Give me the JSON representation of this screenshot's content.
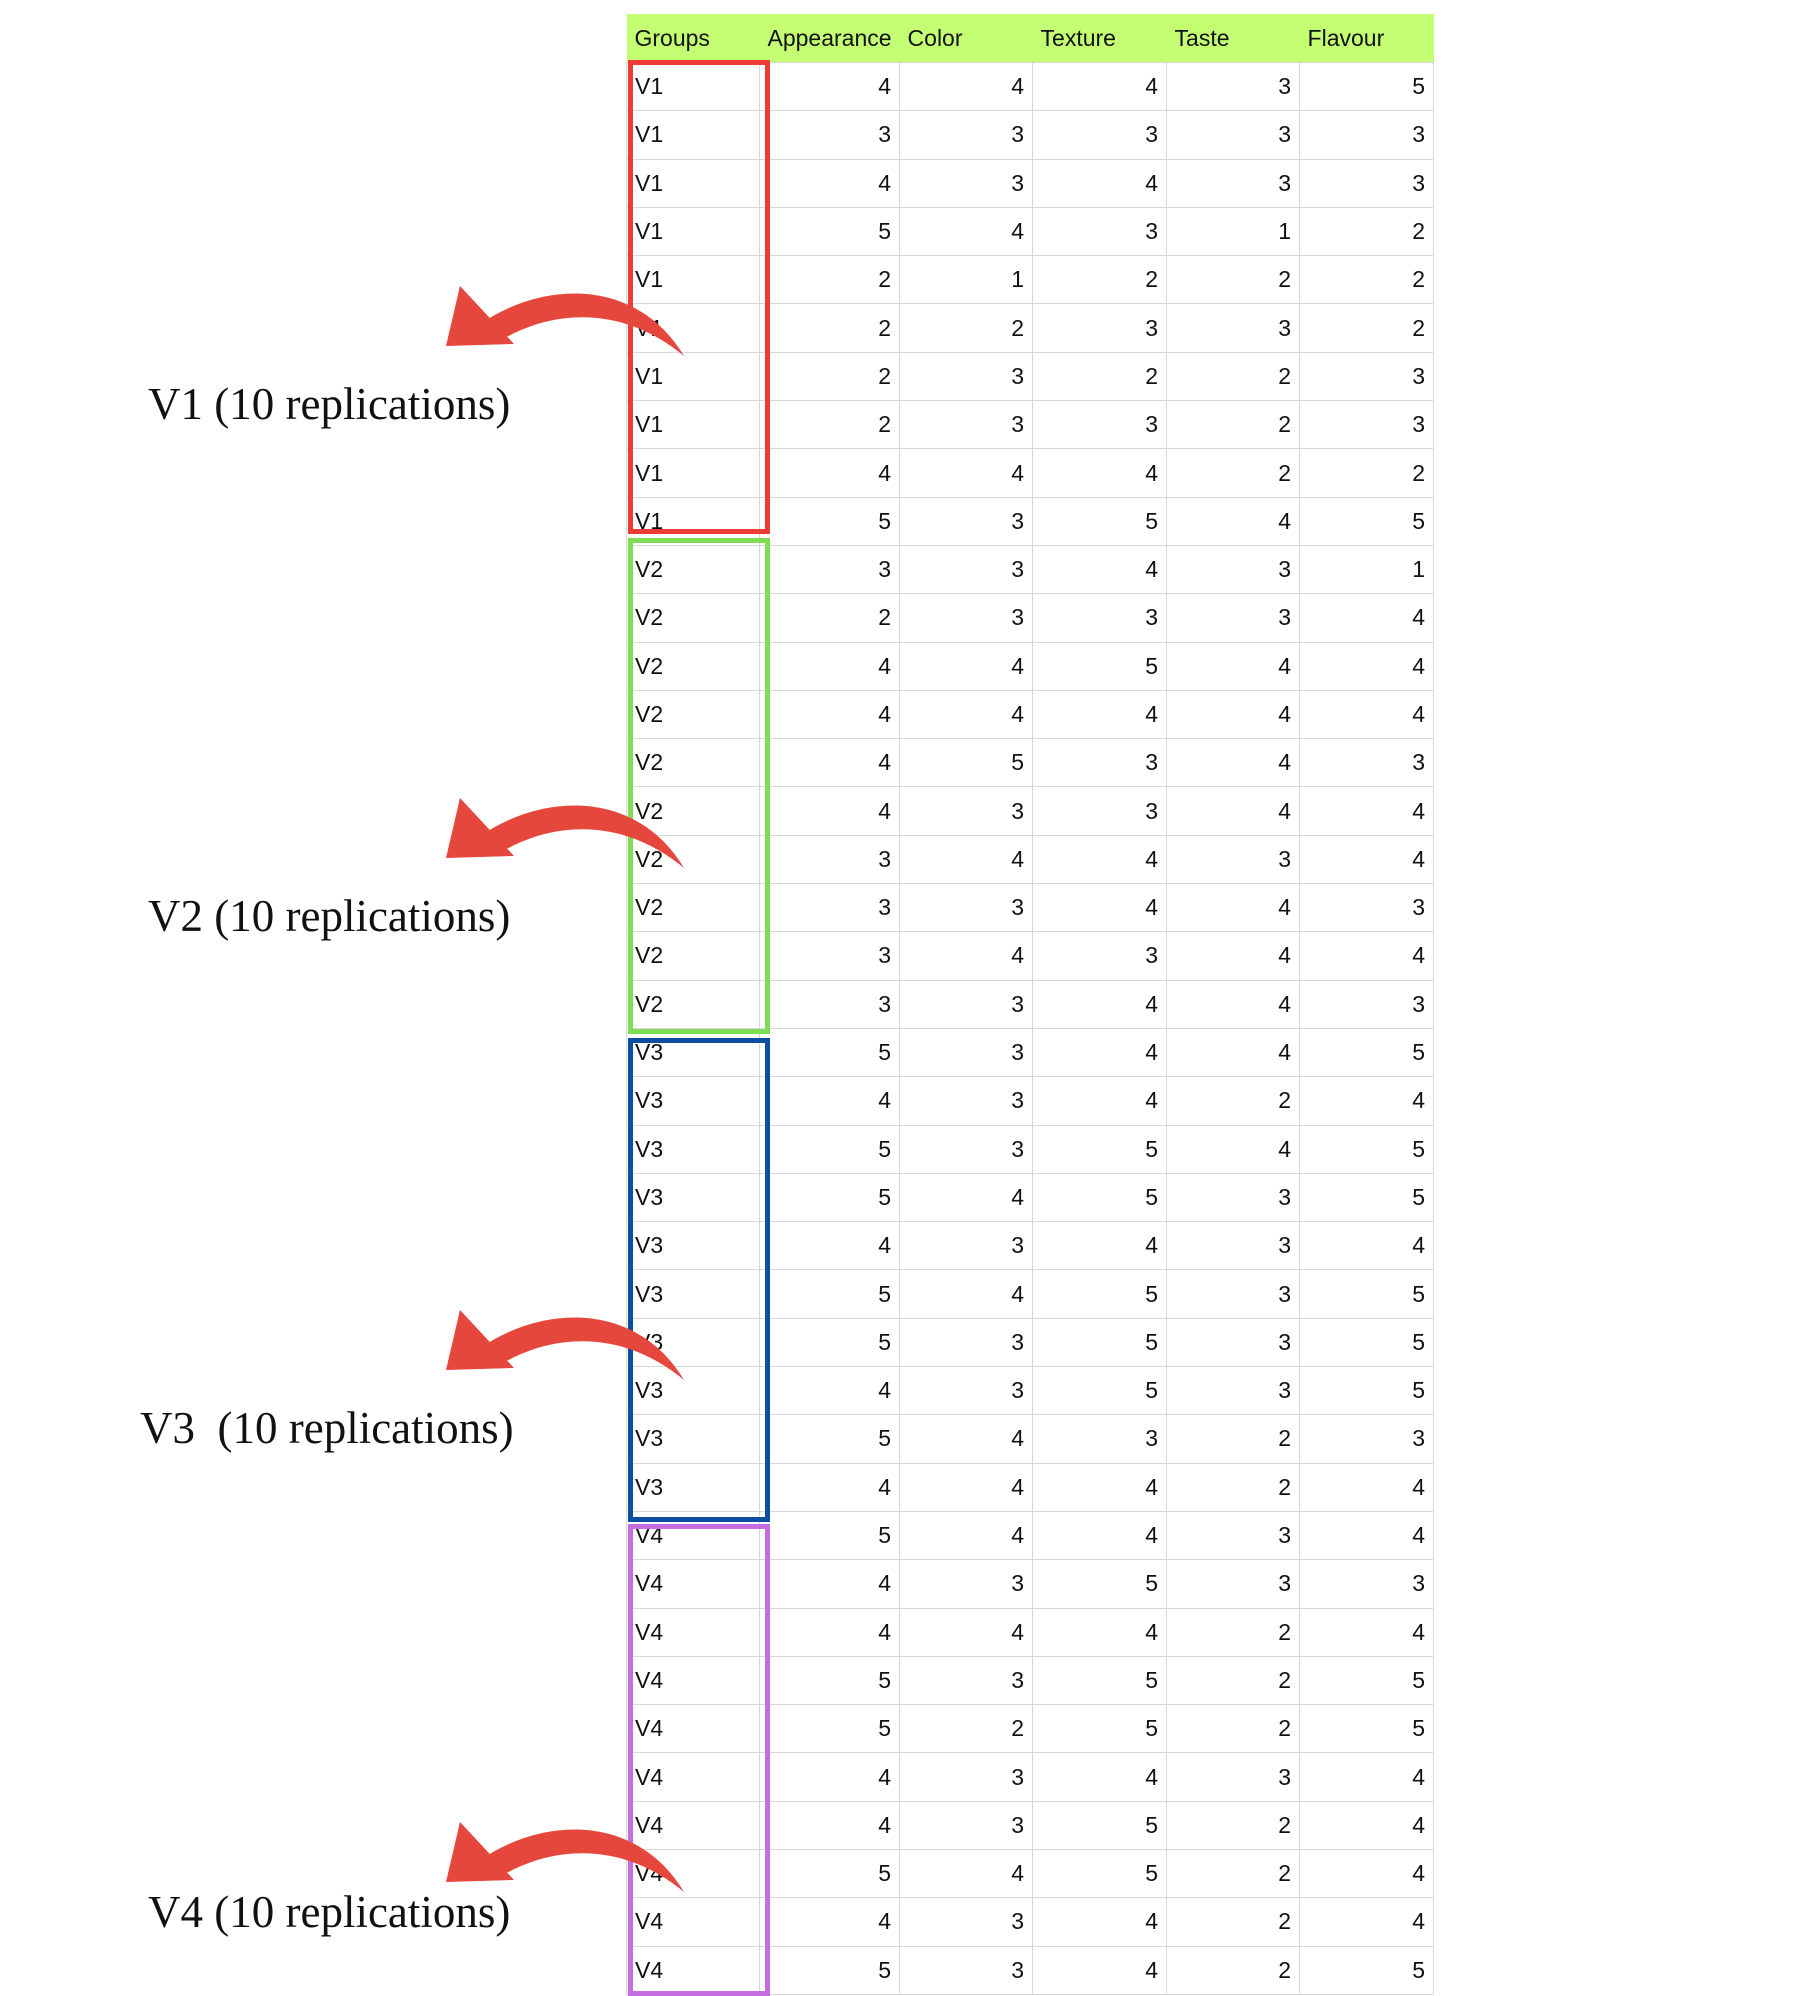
{
  "table": {
    "headers": [
      "Groups",
      "Appearance",
      "Color",
      "Texture",
      "Taste",
      "Flavour"
    ],
    "rows": [
      [
        "V1",
        4,
        4,
        4,
        3,
        5
      ],
      [
        "V1",
        3,
        3,
        3,
        3,
        3
      ],
      [
        "V1",
        4,
        3,
        4,
        3,
        3
      ],
      [
        "V1",
        5,
        4,
        3,
        1,
        2
      ],
      [
        "V1",
        2,
        1,
        2,
        2,
        2
      ],
      [
        "V1",
        2,
        2,
        3,
        3,
        2
      ],
      [
        "V1",
        2,
        3,
        2,
        2,
        3
      ],
      [
        "V1",
        2,
        3,
        3,
        2,
        3
      ],
      [
        "V1",
        4,
        4,
        4,
        2,
        2
      ],
      [
        "V1",
        5,
        3,
        5,
        4,
        5
      ],
      [
        "V2",
        3,
        3,
        4,
        3,
        1
      ],
      [
        "V2",
        2,
        3,
        3,
        3,
        4
      ],
      [
        "V2",
        4,
        4,
        5,
        4,
        4
      ],
      [
        "V2",
        4,
        4,
        4,
        4,
        4
      ],
      [
        "V2",
        4,
        5,
        3,
        4,
        3
      ],
      [
        "V2",
        4,
        3,
        3,
        4,
        4
      ],
      [
        "V2",
        3,
        4,
        4,
        3,
        4
      ],
      [
        "V2",
        3,
        3,
        4,
        4,
        3
      ],
      [
        "V2",
        3,
        4,
        3,
        4,
        4
      ],
      [
        "V2",
        3,
        3,
        4,
        4,
        3
      ],
      [
        "V3",
        5,
        3,
        4,
        4,
        5
      ],
      [
        "V3",
        4,
        3,
        4,
        2,
        4
      ],
      [
        "V3",
        5,
        3,
        5,
        4,
        5
      ],
      [
        "V3",
        5,
        4,
        5,
        3,
        5
      ],
      [
        "V3",
        4,
        3,
        4,
        3,
        4
      ],
      [
        "V3",
        5,
        4,
        5,
        3,
        5
      ],
      [
        "V3",
        5,
        3,
        5,
        3,
        5
      ],
      [
        "V3",
        4,
        3,
        5,
        3,
        5
      ],
      [
        "V3",
        5,
        4,
        3,
        2,
        3
      ],
      [
        "V3",
        4,
        4,
        4,
        2,
        4
      ],
      [
        "V4",
        5,
        4,
        4,
        3,
        4
      ],
      [
        "V4",
        4,
        3,
        5,
        3,
        3
      ],
      [
        "V4",
        4,
        4,
        4,
        2,
        4
      ],
      [
        "V4",
        5,
        3,
        5,
        2,
        5
      ],
      [
        "V4",
        5,
        2,
        5,
        2,
        5
      ],
      [
        "V4",
        4,
        3,
        4,
        3,
        4
      ],
      [
        "V4",
        4,
        3,
        5,
        2,
        4
      ],
      [
        "V4",
        5,
        4,
        5,
        2,
        4
      ],
      [
        "V4",
        4,
        3,
        4,
        2,
        4
      ],
      [
        "V4",
        5,
        3,
        4,
        2,
        5
      ]
    ]
  },
  "colors": {
    "header_bg": "#c4ff73",
    "arrow": "#e5473d",
    "group_boxes": [
      "#ee3b35",
      "#7fdc55",
      "#0b4ea2",
      "#c56ee0"
    ]
  },
  "annotations": [
    {
      "label": "V1 (10 replications)",
      "box_color": "#ee3b35"
    },
    {
      "label": "V2 (10 replications)",
      "box_color": "#7fdc55"
    },
    {
      "label": "V3  (10 replications)",
      "box_color": "#0b4ea2"
    },
    {
      "label": "V4 (10 replications)",
      "box_color": "#c56ee0"
    }
  ],
  "icons": [
    "curved-arrow-icon"
  ]
}
